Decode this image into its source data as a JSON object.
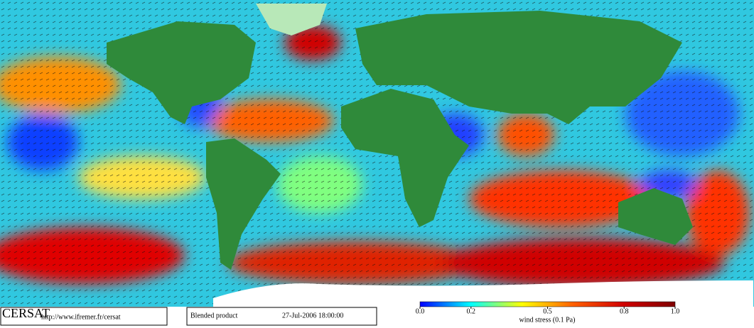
{
  "header": {
    "logo": "CERSAT",
    "url": "http://www.ifremer.fr/cersat"
  },
  "product": {
    "name": "Blended product",
    "datetime": "27-Jul-2006 18:00:00"
  },
  "colorbar": {
    "title": "wind stress (0.1 Pa)",
    "range": [
      0,
      1
    ],
    "ticks": [
      {
        "value": 0,
        "label": "0.0"
      },
      {
        "value": 0.2,
        "label": "0.2"
      },
      {
        "value": 0.5,
        "label": "0.5"
      },
      {
        "value": 0.8,
        "label": "0.8"
      },
      {
        "value": 1,
        "label": "1.0"
      }
    ]
  }
}
